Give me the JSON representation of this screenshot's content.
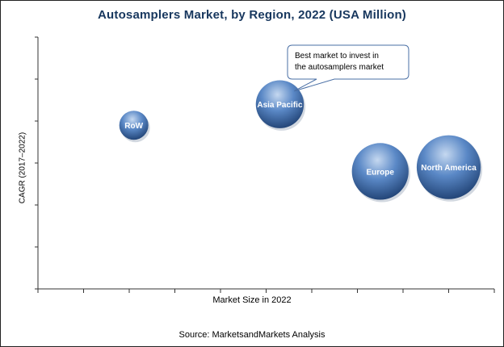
{
  "colors": {
    "title": "#17375e",
    "bubble_light": "#a9c3e6",
    "bubble_mid": "#4f7fc0",
    "bubble_dark": "#1c3d6e",
    "axis": "#333333"
  },
  "chart_data": {
    "type": "scatter",
    "title": "Autosamplers Market, by Region, 2022 (USA Million)",
    "xlabel": "Market Size in 2022",
    "ylabel": "CAGR (2017–2022)",
    "grid": false,
    "points": [
      {
        "label": "RoW",
        "x": 2.1,
        "y": 3.9,
        "size": 1.0
      },
      {
        "label": "Asia Pacific",
        "x": 5.3,
        "y": 4.4,
        "size": 1.65
      },
      {
        "label": "Europe",
        "x": 7.5,
        "y": 2.8,
        "size": 1.95
      },
      {
        "label": "North America",
        "x": 9.0,
        "y": 2.9,
        "size": 2.2
      }
    ],
    "annotations": [
      {
        "target": "Asia Pacific",
        "lines": [
          "Best market to invest in",
          "the autosamplers market"
        ]
      }
    ]
  },
  "footer": {
    "source": "Source:  MarketsandMarkets Analysis"
  }
}
